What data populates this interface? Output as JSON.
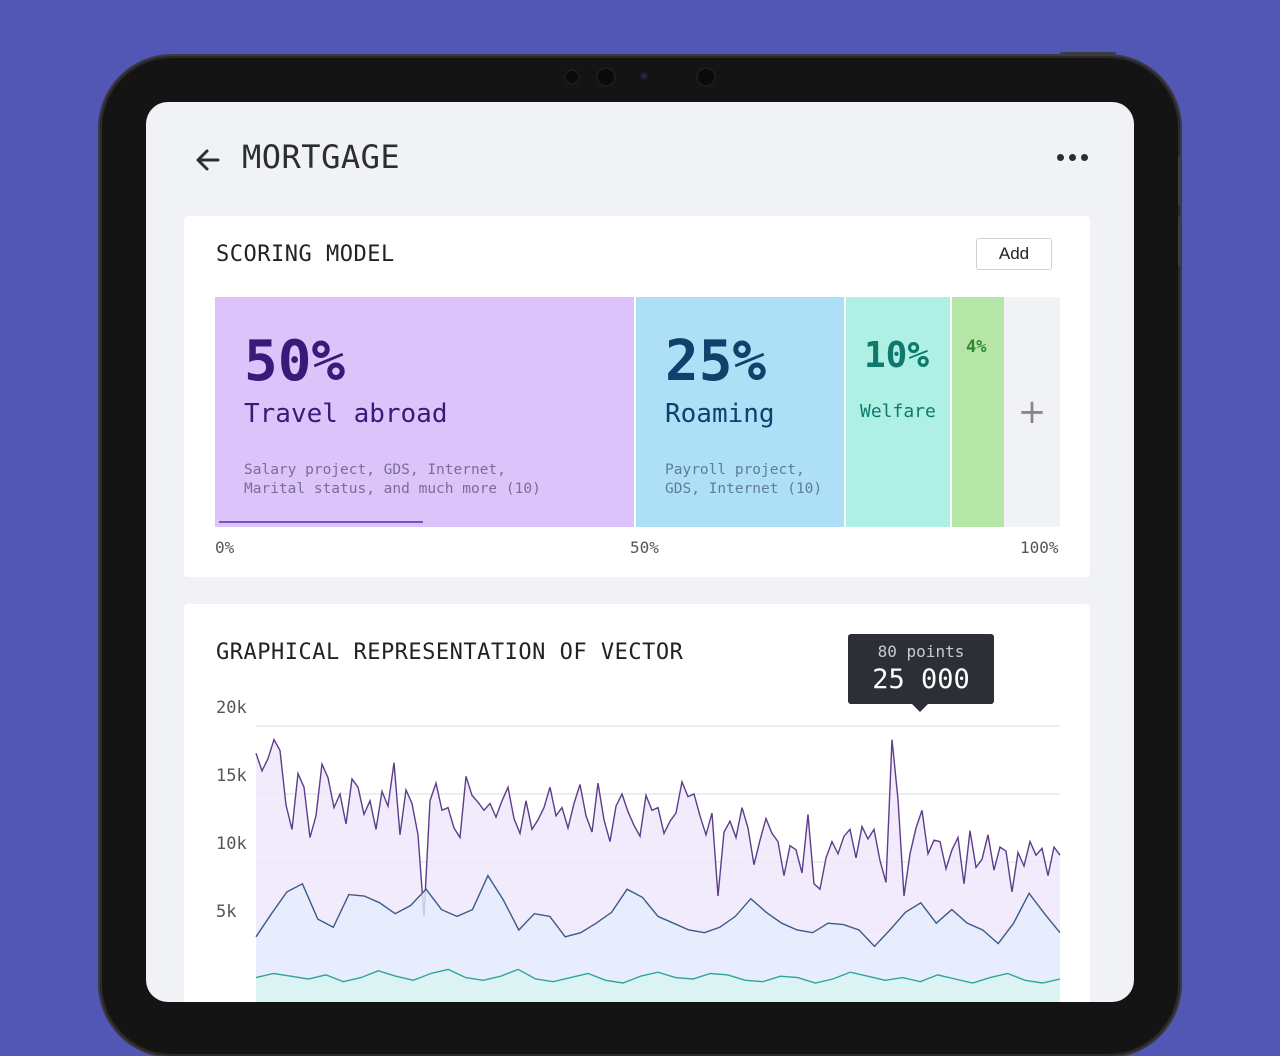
{
  "header": {
    "title": "MORTGAGE",
    "back_icon": "arrow-left-icon",
    "more_icon": "more-horizontal-icon"
  },
  "scoring": {
    "title": "SCORING MODEL",
    "add_label": "Add",
    "segments": [
      {
        "percent": "50%",
        "label": "Travel abroad",
        "desc1": "Salary project, GDS, Internet,",
        "desc2": "Marital status, and much more (10)",
        "value": 50,
        "color": "#dcc4fb"
      },
      {
        "percent": "25%",
        "label": "Roaming",
        "desc1": "Payroll project,",
        "desc2": "GDS, Internet (10)",
        "value": 25,
        "color": "#ade0f7"
      },
      {
        "percent": "10%",
        "label": "Welfare",
        "value": 10,
        "color": "#aef0e3"
      },
      {
        "percent": "4%",
        "value": 4,
        "color": "#b5e6a8"
      }
    ],
    "axis": [
      "0%",
      "50%",
      "100%"
    ]
  },
  "vector": {
    "title": "GRAPHICAL REPRESENTATION OF VECTOR",
    "tooltip_sub": "80 points",
    "tooltip_value": "25 000",
    "yticks": [
      "20k",
      "15k",
      "10k",
      "5k"
    ]
  },
  "chart_data": {
    "type": "area",
    "ylim": [
      0,
      20000
    ],
    "yticks": [
      5000,
      10000,
      15000,
      20000
    ],
    "series": [
      {
        "color": "#5b3d8c",
        "fill": "#efe6fb",
        "values": [
          18000,
          16700,
          17600,
          19000,
          18200,
          14200,
          12400,
          16500,
          15500,
          11800,
          13400,
          17200,
          16200,
          14000,
          15000,
          12800,
          16100,
          15500,
          13500,
          14500,
          12400,
          15200,
          14100,
          17300,
          12000,
          15300,
          14300,
          12000,
          6000,
          14500,
          15800,
          13800,
          14000,
          12500,
          11800,
          16300,
          14900,
          14400,
          13800,
          14300,
          13300,
          14500,
          15500,
          13200,
          12100,
          14500,
          12400,
          13100,
          14000,
          15500,
          13400,
          14000,
          12500,
          14300,
          15700,
          13400,
          12200,
          15800,
          13100,
          11500,
          14100,
          15000,
          13700,
          12700,
          11900,
          14900,
          13800,
          14000,
          12100,
          13000,
          13600,
          15900,
          14800,
          15000,
          13400,
          12000,
          13600,
          7500,
          12200,
          13000,
          11800,
          14000,
          12500,
          9800,
          11600,
          13200,
          12100,
          11500,
          9000,
          11200,
          10900,
          9200,
          13500,
          8400,
          8000,
          10300,
          11500,
          10600,
          11900,
          12400,
          10300,
          12600,
          11700,
          12400,
          10100,
          8500,
          19000,
          14600,
          7500,
          10600,
          12500,
          13800,
          10600,
          11600,
          11500,
          9500,
          10900,
          11800,
          8400,
          12300,
          9600,
          10200,
          12000,
          9400,
          11100,
          10800,
          7800,
          10700,
          9700,
          11500,
          10500,
          11000,
          9000,
          11100,
          10500
        ]
      },
      {
        "color": "#3c5a8a",
        "fill": "#e3eefb",
        "values": [
          4500,
          6200,
          7800,
          8400,
          5800,
          5200,
          7600,
          7500,
          7000,
          6200,
          6800,
          8000,
          6500,
          6000,
          6500,
          9000,
          7200,
          5000,
          6200,
          6000,
          4500,
          4800,
          5500,
          6300,
          8000,
          7400,
          6000,
          5500,
          5000,
          4800,
          5200,
          6000,
          7300,
          6300,
          5500,
          5000,
          4800,
          5500,
          5400,
          5000,
          3800,
          5000,
          6300,
          7000,
          5500,
          6500,
          5500,
          5000,
          4000,
          5500,
          7700,
          6200,
          4800
        ]
      },
      {
        "color": "#2fa59a",
        "fill": "#d8f5f0",
        "values": [
          1500,
          1800,
          1600,
          1400,
          1700,
          1200,
          1500,
          2000,
          1600,
          1300,
          1800,
          2100,
          1500,
          1300,
          1600,
          2100,
          1400,
          1200,
          1500,
          1800,
          1300,
          1100,
          1600,
          1900,
          1500,
          1400,
          1800,
          1700,
          1300,
          1200,
          1600,
          1500,
          1100,
          1400,
          1900,
          1600,
          1300,
          1500,
          1200,
          1700,
          1400,
          1100,
          1500,
          1800,
          1300,
          1100,
          1400
        ]
      }
    ]
  }
}
